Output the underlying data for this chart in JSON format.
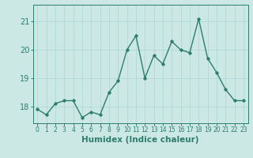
{
  "x": [
    0,
    1,
    2,
    3,
    4,
    5,
    6,
    7,
    8,
    9,
    10,
    11,
    12,
    13,
    14,
    15,
    16,
    17,
    18,
    19,
    20,
    21,
    22,
    23
  ],
  "y": [
    17.9,
    17.7,
    18.1,
    18.2,
    18.2,
    17.6,
    17.8,
    17.7,
    18.5,
    18.9,
    20.0,
    20.5,
    19.0,
    19.8,
    19.5,
    20.3,
    20.0,
    19.9,
    21.1,
    19.7,
    19.2,
    18.6,
    18.2,
    18.2
  ],
  "xlabel": "Humidex (Indice chaleur)",
  "ylim": [
    17.4,
    21.6
  ],
  "yticks": [
    18,
    19,
    20,
    21
  ],
  "xticks": [
    0,
    1,
    2,
    3,
    4,
    5,
    6,
    7,
    8,
    9,
    10,
    11,
    12,
    13,
    14,
    15,
    16,
    17,
    18,
    19,
    20,
    21,
    22,
    23
  ],
  "line_color": "#2e7d6e",
  "marker": "D",
  "marker_size": 1.8,
  "background_color": "#cce8e4",
  "grid_color": "#add4cf",
  "tick_color": "#2e7d6e",
  "xlabel_color": "#2e7d6e",
  "line_width": 1.0,
  "xlabel_fontsize": 7.5,
  "ytick_fontsize": 7,
  "xtick_fontsize": 5.5
}
